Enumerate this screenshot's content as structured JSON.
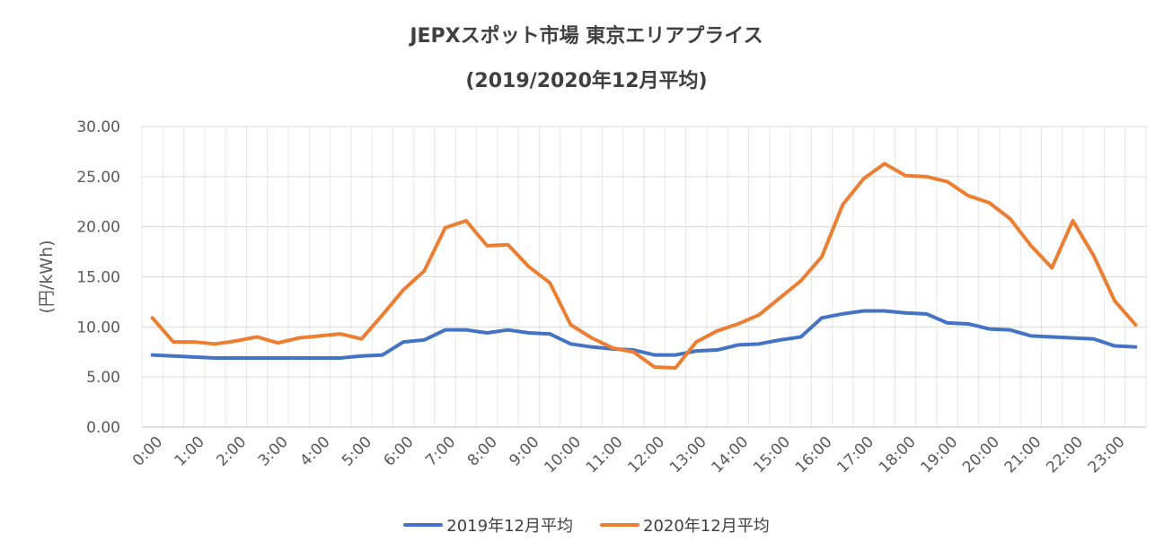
{
  "chart_data": {
    "type": "line",
    "title": "JEPXスポット市場 東京エリアプライス",
    "subtitle": "(2019/2020年12月平均)",
    "xlabel": "",
    "ylabel": "(円/kWh)",
    "ylim": [
      0,
      30
    ],
    "yticks": [
      "0.00",
      "5.00",
      "10.00",
      "15.00",
      "20.00",
      "25.00",
      "30.00"
    ],
    "xtick_labels": [
      "0:00",
      "1:00",
      "2:00",
      "3:00",
      "4:00",
      "5:00",
      "6:00",
      "7:00",
      "8:00",
      "9:00",
      "10:00",
      "11:00",
      "12:00",
      "13:00",
      "14:00",
      "15:00",
      "16:00",
      "17:00",
      "18:00",
      "19:00",
      "20:00",
      "21:00",
      "22:00",
      "23:00"
    ],
    "grid": true,
    "legend_position": "bottom",
    "series": [
      {
        "name": "2019年12月平均",
        "color": "#4472C4",
        "values": [
          7.2,
          7.1,
          7.0,
          6.9,
          6.9,
          6.9,
          6.9,
          6.9,
          6.9,
          6.9,
          7.1,
          7.2,
          8.5,
          8.7,
          9.7,
          9.7,
          9.4,
          9.7,
          9.4,
          9.3,
          8.3,
          8.0,
          7.8,
          7.7,
          7.2,
          7.2,
          7.6,
          7.7,
          8.2,
          8.3,
          8.7,
          9.0,
          10.9,
          11.3,
          11.6,
          11.6,
          11.4,
          11.3,
          10.4,
          10.3,
          9.8,
          9.7,
          9.1,
          9.0,
          8.9,
          8.8,
          8.1,
          8.0
        ]
      },
      {
        "name": "2020年12月平均",
        "color": "#ED7D31",
        "values": [
          10.9,
          8.5,
          8.5,
          8.3,
          8.6,
          9.0,
          8.4,
          8.9,
          9.1,
          9.3,
          8.8,
          11.2,
          13.7,
          15.6,
          19.9,
          20.6,
          18.1,
          18.2,
          16.0,
          14.4,
          10.2,
          8.9,
          7.9,
          7.5,
          6.0,
          5.9,
          8.5,
          9.6,
          10.3,
          11.2,
          12.9,
          14.6,
          17.0,
          22.2,
          24.8,
          26.3,
          25.1,
          25.0,
          24.5,
          23.1,
          22.4,
          20.8,
          18.1,
          15.9,
          20.6,
          17.1,
          12.6,
          10.2
        ]
      }
    ]
  }
}
